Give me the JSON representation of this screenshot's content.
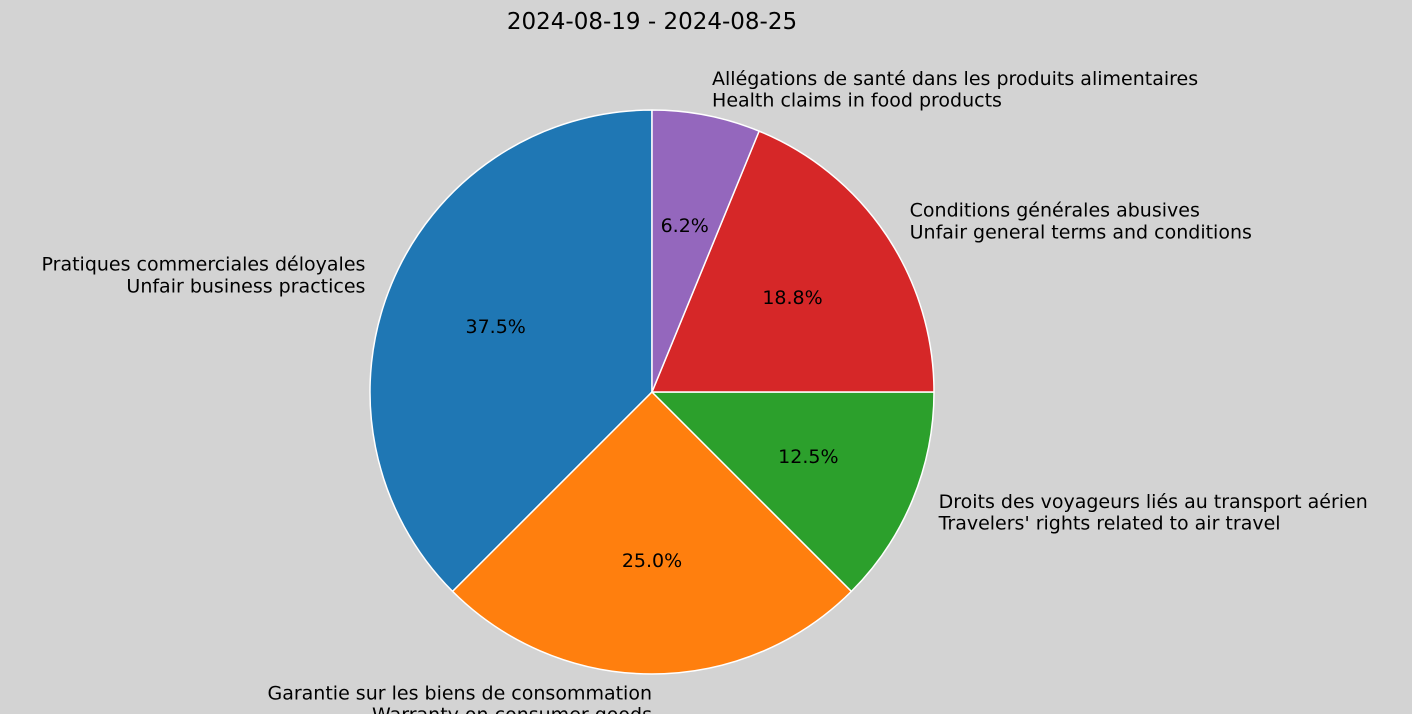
{
  "chart_data": {
    "type": "pie",
    "title": "2024-08-19 - 2024-08-25",
    "start_angle_deg": 90,
    "direction": "counterclockwise",
    "wedge_edge_color": "#ffffff",
    "background_color": "#d3d3d3",
    "slices": [
      {
        "label_fr": "Pratiques commerciales déloyales",
        "label_en": "Unfair business practices",
        "value": 37.5,
        "pct_label": "37.5%",
        "color": "#1f77b4"
      },
      {
        "label_fr": "Garantie sur les biens de consommation",
        "label_en": "Warranty on consumer goods",
        "value": 25.0,
        "pct_label": "25.0%",
        "color": "#ff7f0e"
      },
      {
        "label_fr": "Droits des voyageurs liés au transport aérien",
        "label_en": "Travelers' rights related to air travel",
        "value": 12.5,
        "pct_label": "12.5%",
        "color": "#2ca02c"
      },
      {
        "label_fr": "Conditions générales abusives",
        "label_en": "Unfair general terms and conditions",
        "value": 18.8,
        "pct_label": "18.8%",
        "color": "#d62728"
      },
      {
        "label_fr": "Allégations de santé dans les produits alimentaires",
        "label_en": "Health claims in food products",
        "value": 6.2,
        "pct_label": "6.2%",
        "color": "#9467bd"
      }
    ]
  }
}
